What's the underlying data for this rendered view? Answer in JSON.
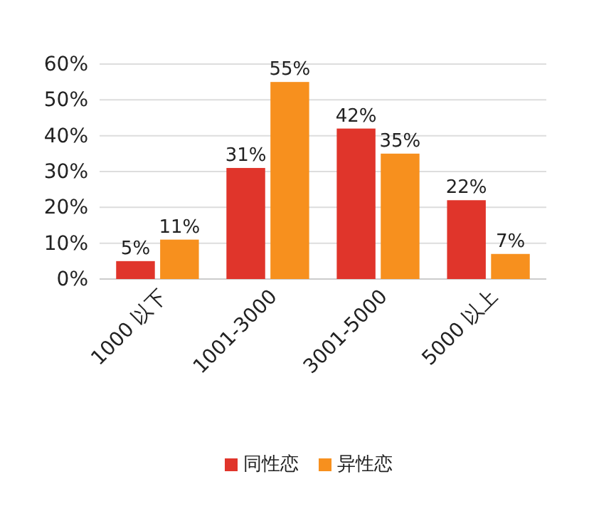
{
  "chart_data": {
    "type": "bar",
    "categories": [
      "1000 以下",
      "1001-3000",
      "3001-5000",
      "5000 以上"
    ],
    "series": [
      {
        "name": "同性恋",
        "color": "#e0352b",
        "values": [
          5,
          31,
          42,
          22
        ],
        "value_labels": [
          "5%",
          "31%",
          "42%",
          "22%"
        ]
      },
      {
        "name": "异性恋",
        "color": "#f7901e",
        "values": [
          11,
          55,
          35,
          7
        ],
        "value_labels": [
          "11%",
          "55%",
          "35%",
          "7%"
        ]
      }
    ],
    "ylim": [
      0,
      60
    ],
    "yticks": [
      {
        "value": 0,
        "label": "0%"
      },
      {
        "value": 10,
        "label": "10%"
      },
      {
        "value": 20,
        "label": "20%"
      },
      {
        "value": 30,
        "label": "30%"
      },
      {
        "value": 40,
        "label": "40%"
      },
      {
        "value": 50,
        "label": "50%"
      },
      {
        "value": 60,
        "label": "60%"
      }
    ],
    "grid": "y",
    "legend": "bottom"
  }
}
